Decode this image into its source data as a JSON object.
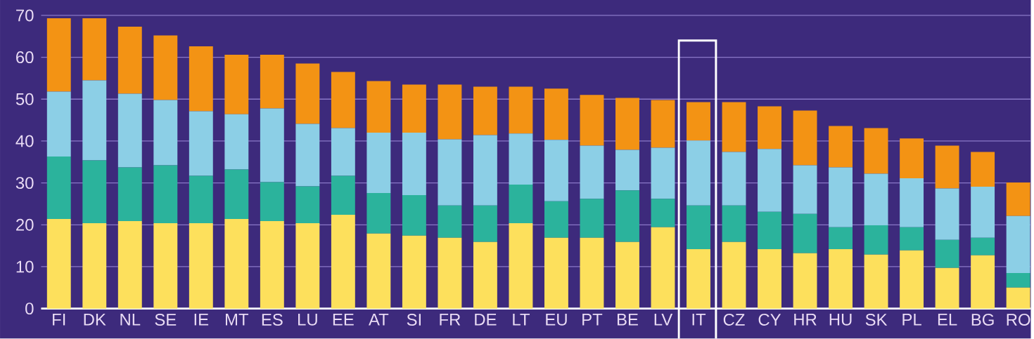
{
  "chart_data": {
    "type": "bar",
    "stacked": true,
    "grid": "y",
    "categories": [
      "FI",
      "DK",
      "NL",
      "SE",
      "IE",
      "MT",
      "ES",
      "LU",
      "EE",
      "AT",
      "SI",
      "FR",
      "DE",
      "LT",
      "EU",
      "PT",
      "BE",
      "LV",
      "IT",
      "CZ",
      "CY",
      "HR",
      "HU",
      "SK",
      "PL",
      "EL",
      "BG",
      "RO"
    ],
    "series": [
      {
        "color": "#fde05c",
        "values": [
          21.4,
          20.4,
          20.9,
          20.4,
          20.4,
          21.4,
          20.9,
          20.4,
          22.4,
          17.9,
          17.4,
          16.9,
          15.9,
          20.4,
          16.9,
          16.9,
          15.9,
          19.4,
          14.2,
          15.9,
          14.2,
          13.2,
          14.2,
          12.9,
          13.9,
          9.7,
          12.7,
          5.0
        ]
      },
      {
        "color": "#2bb39c",
        "values": [
          14.9,
          15.0,
          12.8,
          13.8,
          11.3,
          11.8,
          9.3,
          8.8,
          9.3,
          9.7,
          9.7,
          7.7,
          8.7,
          9.2,
          8.7,
          9.3,
          12.3,
          6.8,
          10.4,
          8.7,
          8.9,
          9.4,
          5.2,
          7.0,
          5.5,
          6.7,
          4.2,
          3.5
        ]
      },
      {
        "color": "#8ccfe6",
        "values": [
          15.5,
          19.1,
          17.6,
          15.6,
          15.4,
          13.2,
          17.6,
          14.9,
          11.4,
          14.4,
          14.9,
          15.8,
          16.8,
          12.2,
          14.7,
          12.7,
          9.7,
          12.2,
          15.5,
          12.8,
          15.0,
          11.6,
          14.3,
          12.3,
          11.7,
          12.3,
          12.2,
          13.6
        ]
      },
      {
        "color": "#f39314",
        "values": [
          17.5,
          14.8,
          16.0,
          15.4,
          15.5,
          14.2,
          12.8,
          14.4,
          13.4,
          12.3,
          11.5,
          13.1,
          11.6,
          11.2,
          12.2,
          12.1,
          12.4,
          11.4,
          9.2,
          11.9,
          10.2,
          13.1,
          9.9,
          10.9,
          9.5,
          10.2,
          8.3,
          8.0
        ]
      }
    ],
    "ylim": [
      0,
      70
    ],
    "yticks": [
      0,
      10,
      20,
      30,
      40,
      50,
      60,
      70
    ]
  }
}
